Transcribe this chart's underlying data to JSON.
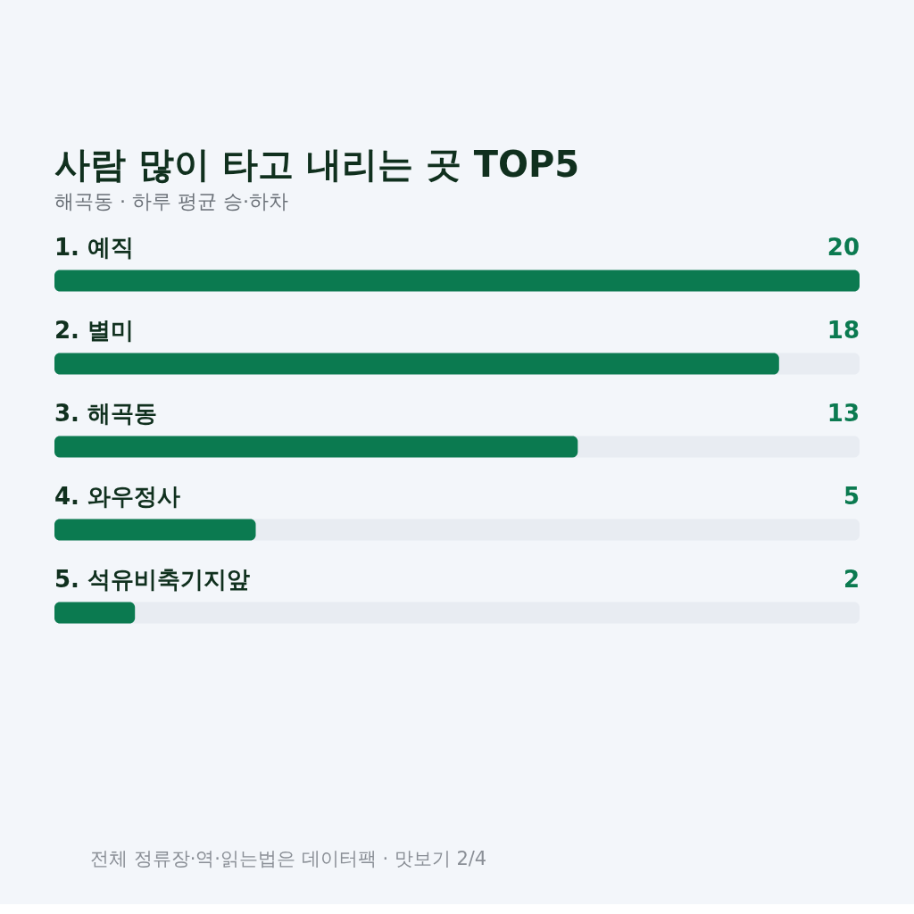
{
  "chart_data": {
    "type": "bar",
    "orientation": "horizontal",
    "title": "사람 많이 타고 내리는 곳 TOP5",
    "subtitle": "해곡동 · 하루 평균 승·하차",
    "categories": [
      "1. 예직",
      "2. 별미",
      "3. 해곡동",
      "4. 와우정사",
      "5. 석유비축기지앞"
    ],
    "values": [
      20,
      18,
      13,
      5,
      2
    ],
    "color": "#0b7a50",
    "xlim": [
      0,
      20
    ],
    "data_labels": true,
    "tick_labels": false,
    "annotations": [
      "전체 정류장·역·읽는법은 데이터팩 · 맛보기 2/4"
    ]
  }
}
